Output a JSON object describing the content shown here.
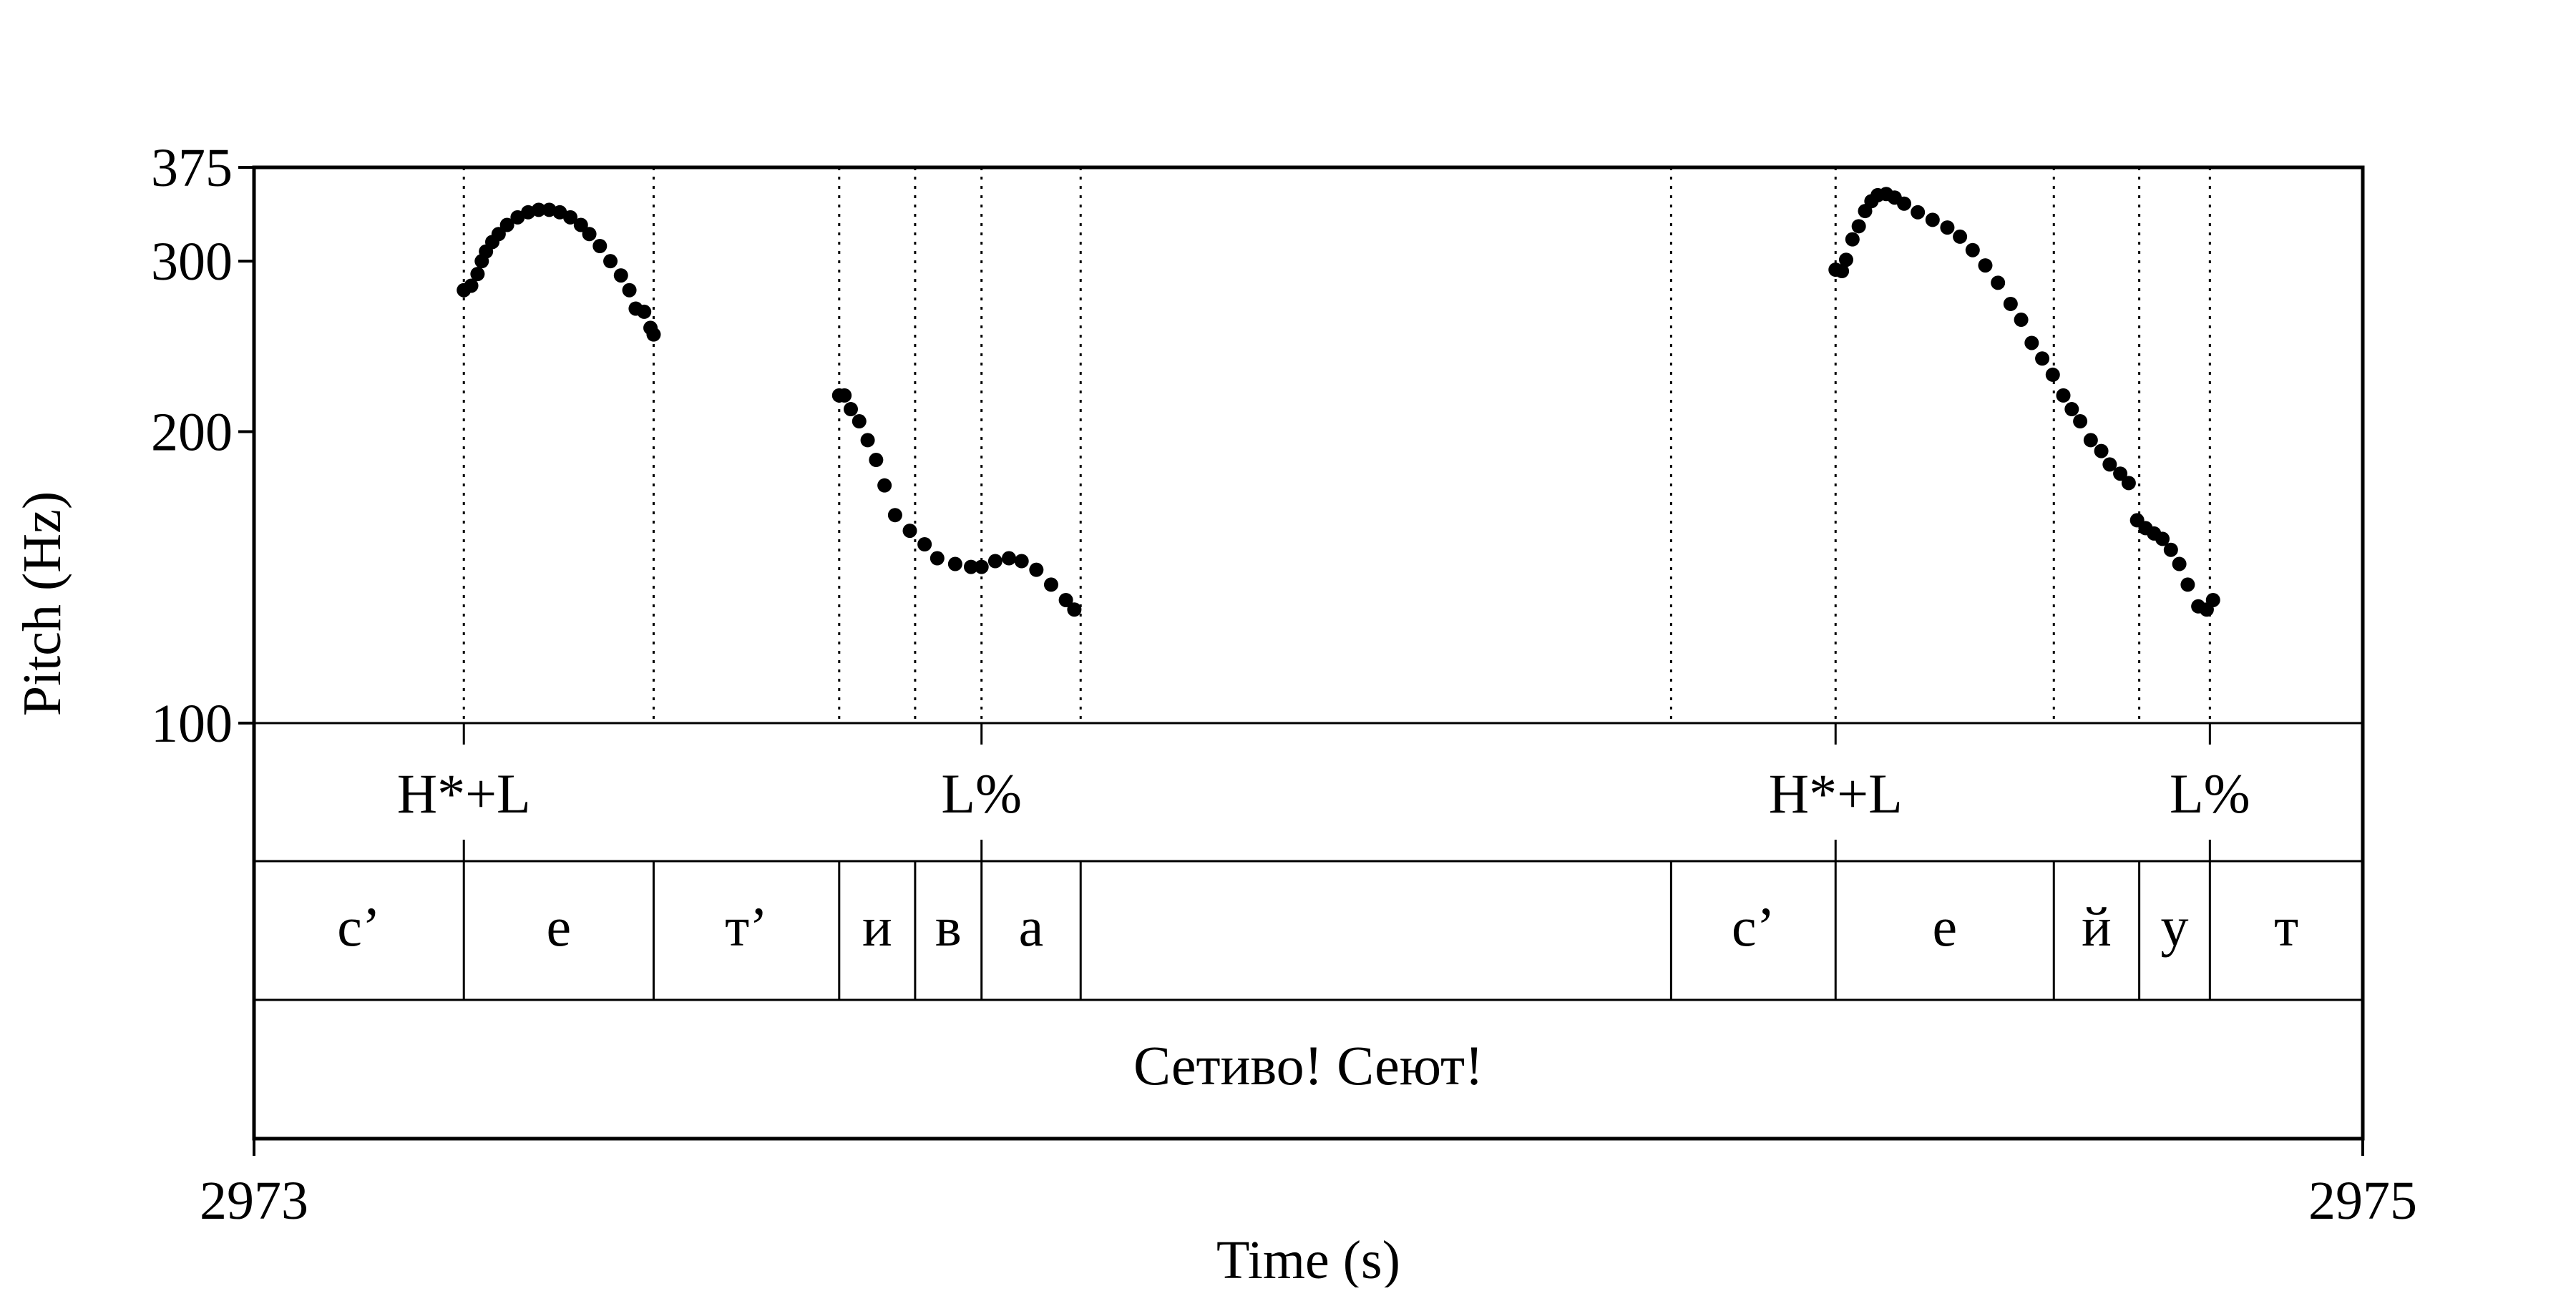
{
  "chart_data": {
    "type": "scatter",
    "ylabel": "Pitch (Hz)",
    "xlabel": "Time (s)",
    "xlim": [
      2973,
      2975
    ],
    "ylim": [
      100,
      375
    ],
    "y_ticks": [
      100,
      200,
      300,
      375
    ],
    "x_ticks": [
      2973,
      2975
    ],
    "grid": false,
    "boundaries": [
      2973.199,
      2973.379,
      2973.555,
      2973.627,
      2973.69,
      2973.784,
      2974.344,
      2974.5,
      2974.707,
      2974.788,
      2974.855
    ],
    "tiers": [
      {
        "name": "tones",
        "labels": [
          {
            "text": "H*+L",
            "t": 2973.199
          },
          {
            "text": "L%",
            "t": 2973.69
          },
          {
            "text": "H*+L",
            "t": 2974.5
          },
          {
            "text": "L%",
            "t": 2974.855
          }
        ]
      },
      {
        "name": "segments",
        "intervals": [
          {
            "text": "с’",
            "start": 2973.0,
            "end": 2973.199
          },
          {
            "text": "е",
            "start": 2973.199,
            "end": 2973.379
          },
          {
            "text": "т’",
            "start": 2973.379,
            "end": 2973.555
          },
          {
            "text": "и",
            "start": 2973.555,
            "end": 2973.627
          },
          {
            "text": "в",
            "start": 2973.627,
            "end": 2973.69
          },
          {
            "text": "а",
            "start": 2973.69,
            "end": 2973.784
          },
          {
            "text": "",
            "start": 2973.784,
            "end": 2974.344
          },
          {
            "text": "с’",
            "start": 2974.344,
            "end": 2974.5
          },
          {
            "text": "е",
            "start": 2974.5,
            "end": 2974.707
          },
          {
            "text": "й",
            "start": 2974.707,
            "end": 2974.788
          },
          {
            "text": "у",
            "start": 2974.788,
            "end": 2974.855
          },
          {
            "text": "т",
            "start": 2974.855,
            "end": 2975.0
          }
        ]
      },
      {
        "name": "words",
        "intervals": [
          {
            "text": "Сетиво! Сеют!",
            "start": 2973.0,
            "end": 2975.0
          }
        ]
      }
    ],
    "series": [
      {
        "values": [
          [
            2973.199,
            280
          ],
          [
            2973.206,
            283
          ],
          [
            2973.212,
            291
          ],
          [
            2973.216,
            300
          ],
          [
            2973.22,
            307
          ],
          [
            2973.226,
            314
          ],
          [
            2973.232,
            320
          ],
          [
            2973.24,
            327
          ],
          [
            2973.25,
            333
          ],
          [
            2973.26,
            337
          ],
          [
            2973.27,
            339
          ],
          [
            2973.28,
            339
          ],
          [
            2973.29,
            337
          ],
          [
            2973.3,
            333
          ],
          [
            2973.31,
            327
          ],
          [
            2973.318,
            320
          ],
          [
            2973.328,
            311
          ],
          [
            2973.338,
            300
          ],
          [
            2973.348,
            290
          ],
          [
            2973.356,
            280
          ],
          [
            2973.362,
            268
          ],
          [
            2973.37,
            266
          ],
          [
            2973.376,
            256
          ],
          [
            2973.379,
            252
          ],
          [
            2973.555,
            218
          ],
          [
            2973.56,
            218
          ],
          [
            2973.566,
            211
          ],
          [
            2973.574,
            205
          ],
          [
            2973.582,
            196
          ],
          [
            2973.59,
            187
          ],
          [
            2973.598,
            176
          ],
          [
            2973.608,
            164
          ],
          [
            2973.622,
            158
          ],
          [
            2973.636,
            153
          ],
          [
            2973.648,
            148
          ],
          [
            2973.665,
            146
          ],
          [
            2973.68,
            145
          ],
          [
            2973.69,
            145
          ],
          [
            2973.703,
            147
          ],
          [
            2973.716,
            148
          ],
          [
            2973.728,
            147
          ],
          [
            2973.742,
            144
          ],
          [
            2973.756,
            139
          ],
          [
            2973.77,
            134
          ],
          [
            2973.778,
            131
          ],
          [
            2974.5,
            294
          ],
          [
            2974.506,
            293
          ],
          [
            2974.51,
            301
          ],
          [
            2974.516,
            316
          ],
          [
            2974.522,
            326
          ],
          [
            2974.528,
            338
          ],
          [
            2974.534,
            346
          ],
          [
            2974.54,
            351
          ],
          [
            2974.548,
            352
          ],
          [
            2974.556,
            349
          ],
          [
            2974.565,
            344
          ],
          [
            2974.578,
            337
          ],
          [
            2974.592,
            331
          ],
          [
            2974.606,
            325
          ],
          [
            2974.618,
            318
          ],
          [
            2974.63,
            308
          ],
          [
            2974.642,
            297
          ],
          [
            2974.654,
            285
          ],
          [
            2974.666,
            271
          ],
          [
            2974.676,
            261
          ],
          [
            2974.686,
            247
          ],
          [
            2974.696,
            238
          ],
          [
            2974.706,
            229
          ],
          [
            2974.716,
            218
          ],
          [
            2974.724,
            211
          ],
          [
            2974.732,
            205
          ],
          [
            2974.742,
            196
          ],
          [
            2974.752,
            191
          ],
          [
            2974.76,
            185
          ],
          [
            2974.77,
            181
          ],
          [
            2974.778,
            177
          ],
          [
            2974.786,
            162
          ],
          [
            2974.794,
            159
          ],
          [
            2974.802,
            157
          ],
          [
            2974.81,
            155
          ],
          [
            2974.818,
            151
          ],
          [
            2974.826,
            146
          ],
          [
            2974.834,
            139
          ],
          [
            2974.844,
            132
          ],
          [
            2974.852,
            131
          ],
          [
            2974.858,
            134
          ]
        ]
      }
    ]
  }
}
